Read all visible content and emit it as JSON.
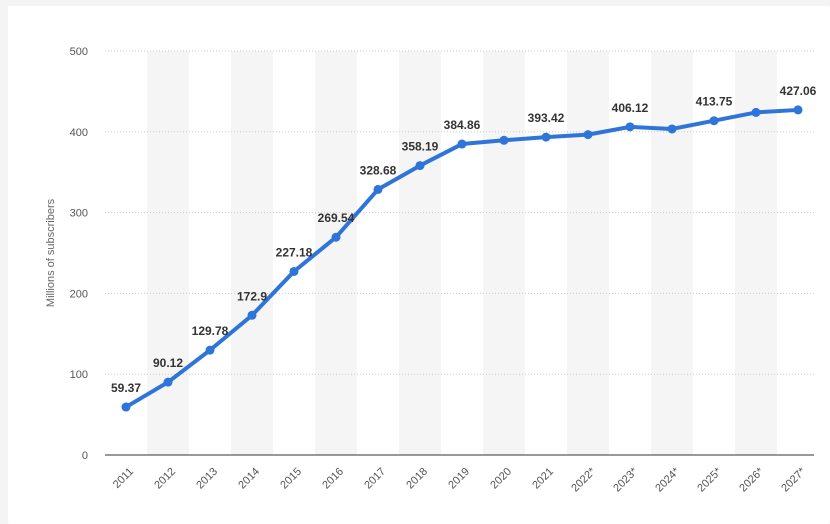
{
  "chart_data": {
    "type": "line",
    "title": "",
    "xlabel": "",
    "ylabel": "Millions of subscribers",
    "ylim": [
      0,
      500
    ],
    "yticks": [
      0,
      100,
      200,
      300,
      400,
      500
    ],
    "grid": true,
    "categories": [
      "2011",
      "2012",
      "2013",
      "2014",
      "2015",
      "2016",
      "2017",
      "2018",
      "2019",
      "2020",
      "2021",
      "2022*",
      "2023*",
      "2024*",
      "2025*",
      "2026*",
      "2027*"
    ],
    "series": [
      {
        "values": [
          59.37,
          90.12,
          129.78,
          172.9,
          227.18,
          269.54,
          328.68,
          358.19,
          384.86,
          389.5,
          393.42,
          396.5,
          406.12,
          403.5,
          413.75,
          424.0,
          427.06
        ],
        "labels": [
          "59.37",
          "90.12",
          "129.78",
          "172.9",
          "227.18",
          "269.54",
          "328.68",
          "358.19",
          "384.86",
          "",
          "393.42",
          "",
          "406.12",
          "",
          "413.75",
          "",
          "427.06"
        ],
        "color": "#2f74d8"
      }
    ]
  },
  "colors": {
    "line": "#2f74d8",
    "band": "#f5f5f5",
    "grid": "#cccccc",
    "axis": "#333333"
  }
}
